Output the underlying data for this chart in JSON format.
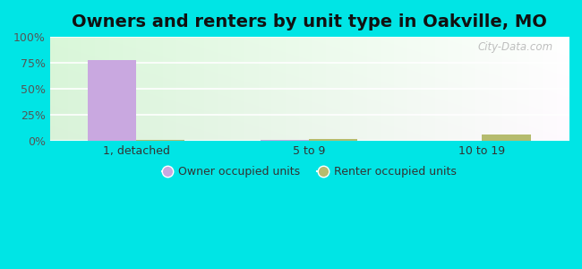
{
  "title": "Owners and renters by unit type in Oakville, MO",
  "categories": [
    "1, detached",
    "5 to 9",
    "10 to 19"
  ],
  "owner_values": [
    78.0,
    0.8,
    0.5
  ],
  "renter_values": [
    0.8,
    2.0,
    6.0
  ],
  "owner_color": "#c9a8e0",
  "renter_color": "#b5bc6e",
  "ylim": [
    0,
    100
  ],
  "yticks": [
    0,
    25,
    50,
    75,
    100
  ],
  "ytick_labels": [
    "0%",
    "25%",
    "50%",
    "75%",
    "100%"
  ],
  "bg_left": "#c8eec0",
  "bg_right": "#e8f8f0",
  "outer_bg": "#00e5e5",
  "bar_width": 0.28,
  "title_fontsize": 14,
  "watermark": "City-Data.com",
  "legend_owner": "Owner occupied units",
  "legend_renter": "Renter occupied units"
}
